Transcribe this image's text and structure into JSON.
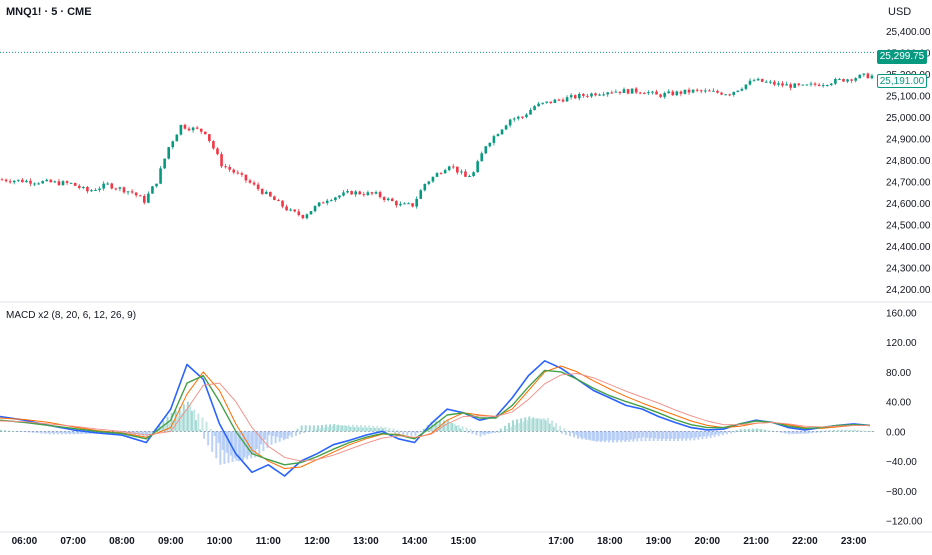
{
  "header": {
    "symbol": "MNQ1! · 5 · CME",
    "currency": "USD"
  },
  "price_badges": {
    "last": "25,299.75",
    "marker": "25,191.00"
  },
  "indicator": {
    "label": "MACD x2 (8, 20, 6, 12, 26, 9)"
  },
  "colors": {
    "up": "#089981",
    "down": "#f23645",
    "macd_fast": "#2962ff",
    "signal_fast": "#ff6d00",
    "macd_slow": "#43a047",
    "signal_slow": "#f28b82",
    "hist_pos": "#b2dfdb",
    "hist_neg": "#a4c2f4",
    "hist_pos_dark": "#80cbc4"
  },
  "chart_data": [
    {
      "type": "candlestick",
      "title": "MNQ1! · 5 · CME",
      "ylabel": "USD",
      "ylim": [
        24150,
        25450
      ],
      "x_ticks": [
        "06:00",
        "07:00",
        "08:00",
        "09:00",
        "10:00",
        "11:00",
        "12:00",
        "13:00",
        "14:00",
        "15:00",
        "17:00",
        "18:00",
        "19:00",
        "20:00",
        "21:00",
        "22:00",
        "23:00"
      ],
      "y_ticks": [
        24200,
        24300,
        24400,
        24500,
        24600,
        24700,
        24800,
        24900,
        25000,
        25100,
        25200,
        25300,
        25400
      ],
      "y_tick_labels": [
        "24,200.00",
        "24,300.00",
        "24,400.00",
        "24,500.00",
        "24,600.00",
        "24,700.00",
        "24,800.00",
        "24,900.00",
        "25,000.00",
        "25,100.00",
        "25,200.00",
        "25,300.00",
        "25,400.00"
      ],
      "price_path": [
        [
          "05:30",
          24710
        ],
        [
          "06:15",
          24700
        ],
        [
          "07:00",
          24690
        ],
        [
          "07:20",
          24655
        ],
        [
          "07:45",
          24685
        ],
        [
          "08:15",
          24650
        ],
        [
          "08:30",
          24610
        ],
        [
          "08:45",
          24700
        ],
        [
          "09:00",
          24860
        ],
        [
          "09:15",
          24960
        ],
        [
          "09:45",
          24930
        ],
        [
          "10:05",
          24780
        ],
        [
          "10:30",
          24720
        ],
        [
          "11:00",
          24640
        ],
        [
          "11:30",
          24560
        ],
        [
          "11:45",
          24540
        ],
        [
          "12:15",
          24620
        ],
        [
          "12:45",
          24650
        ],
        [
          "13:15",
          24640
        ],
        [
          "13:45",
          24590
        ],
        [
          "14:00",
          24590
        ],
        [
          "14:15",
          24690
        ],
        [
          "14:45",
          24780
        ],
        [
          "15:05",
          24720
        ],
        [
          "15:15",
          24740
        ],
        [
          "15:30",
          24870
        ],
        [
          "16:00",
          24990
        ],
        [
          "16:15",
          25000
        ],
        [
          "16:30",
          25050
        ],
        [
          "17:00",
          25080
        ],
        [
          "17:30",
          25100
        ],
        [
          "18:00",
          25120
        ],
        [
          "18:45",
          25120
        ],
        [
          "19:00",
          25100
        ],
        [
          "19:45",
          25120
        ],
        [
          "20:30",
          25110
        ],
        [
          "21:00",
          25170
        ],
        [
          "21:30",
          25150
        ],
        [
          "22:00",
          25140
        ],
        [
          "22:30",
          25160
        ],
        [
          "23:15",
          25190
        ]
      ],
      "last_price": 25299.75,
      "marker_price": 25191.0
    },
    {
      "type": "line",
      "title": "MACD x2 (8, 20, 6, 12, 26, 9)",
      "ylim": [
        -130,
        170
      ],
      "y_ticks": [
        160,
        120,
        80,
        40,
        0,
        -40,
        -80,
        -120
      ],
      "y_tick_labels": [
        "160.00",
        "120.00",
        "80.00",
        "40.00",
        "0.00",
        "−40.00",
        "−80.00",
        "−120.00"
      ],
      "x": [
        "05:30",
        "06:00",
        "06:30",
        "07:00",
        "07:30",
        "08:00",
        "08:30",
        "09:00",
        "09:20",
        "09:40",
        "10:00",
        "10:20",
        "10:40",
        "11:00",
        "11:20",
        "11:40",
        "12:00",
        "12:20",
        "12:40",
        "13:00",
        "13:20",
        "13:40",
        "14:00",
        "14:20",
        "14:40",
        "15:00",
        "15:20",
        "15:40",
        "16:00",
        "16:20",
        "16:40",
        "17:00",
        "17:20",
        "17:40",
        "18:00",
        "18:20",
        "18:40",
        "19:00",
        "19:20",
        "19:40",
        "20:00",
        "20:20",
        "20:40",
        "21:00",
        "21:20",
        "21:40",
        "22:00",
        "22:20",
        "22:40",
        "23:00",
        "23:20"
      ],
      "series": [
        {
          "key": "macd_fast",
          "values": [
            20,
            15,
            8,
            2,
            -2,
            -5,
            -15,
            30,
            90,
            70,
            10,
            -30,
            -55,
            -45,
            -60,
            -40,
            -30,
            -18,
            -12,
            -5,
            0,
            -10,
            -15,
            10,
            30,
            25,
            15,
            20,
            45,
            75,
            95,
            85,
            70,
            55,
            45,
            35,
            30,
            20,
            12,
            5,
            2,
            3,
            10,
            15,
            12,
            5,
            2,
            5,
            8,
            10,
            8
          ]
        },
        {
          "key": "signal_fast",
          "values": [
            18,
            16,
            12,
            6,
            1,
            -2,
            -8,
            5,
            50,
            80,
            55,
            10,
            -25,
            -40,
            -50,
            -48,
            -38,
            -28,
            -18,
            -10,
            -4,
            -4,
            -9,
            -3,
            15,
            25,
            22,
            20,
            30,
            55,
            80,
            88,
            80,
            68,
            57,
            47,
            38,
            30,
            22,
            14,
            8,
            5,
            7,
            11,
            12,
            9,
            5,
            4,
            6,
            8,
            8
          ]
        },
        {
          "key": "macd_slow",
          "values": [
            15,
            12,
            8,
            4,
            0,
            -3,
            -10,
            15,
            65,
            75,
            40,
            0,
            -30,
            -38,
            -45,
            -42,
            -34,
            -24,
            -15,
            -8,
            -3,
            -5,
            -10,
            5,
            22,
            25,
            18,
            18,
            35,
            60,
            82,
            80,
            70,
            58,
            48,
            40,
            33,
            25,
            16,
            9,
            5,
            5,
            10,
            14,
            12,
            7,
            4,
            5,
            8,
            9,
            8
          ]
        },
        {
          "key": "signal_slow",
          "values": [
            14,
            13,
            10,
            7,
            3,
            0,
            -5,
            0,
            30,
            62,
            65,
            40,
            5,
            -20,
            -35,
            -40,
            -38,
            -32,
            -24,
            -16,
            -9,
            -6,
            -8,
            -4,
            10,
            20,
            21,
            20,
            26,
            43,
            64,
            76,
            78,
            72,
            63,
            54,
            46,
            38,
            29,
            21,
            14,
            9,
            9,
            11,
            12,
            10,
            7,
            6,
            7,
            8,
            8
          ]
        }
      ],
      "histograms": [
        {
          "key": "hist_fast",
          "values": [
            2,
            -1,
            -4,
            -4,
            -3,
            -3,
            -7,
            25,
            40,
            -10,
            -45,
            -40,
            -30,
            -5,
            -10,
            8,
            8,
            10,
            6,
            5,
            4,
            -6,
            -6,
            13,
            15,
            0,
            -7,
            0,
            15,
            20,
            15,
            -3,
            -10,
            -13,
            -12,
            -12,
            -8,
            -10,
            -10,
            -9,
            -6,
            -2,
            3,
            4,
            0,
            -4,
            -3,
            1,
            2,
            2,
            0
          ]
        },
        {
          "key": "hist_slow",
          "values": [
            1,
            -1,
            -2,
            -3,
            -3,
            -3,
            -5,
            15,
            35,
            13,
            -25,
            -40,
            -35,
            -18,
            -10,
            -2,
            4,
            8,
            9,
            8,
            6,
            1,
            -2,
            9,
            12,
            5,
            -3,
            -2,
            9,
            17,
            18,
            4,
            -8,
            -14,
            -15,
            -14,
            -13,
            -13,
            -13,
            -12,
            -9,
            -4,
            1,
            3,
            0,
            -3,
            -3,
            -1,
            1,
            1,
            0
          ]
        }
      ]
    }
  ]
}
